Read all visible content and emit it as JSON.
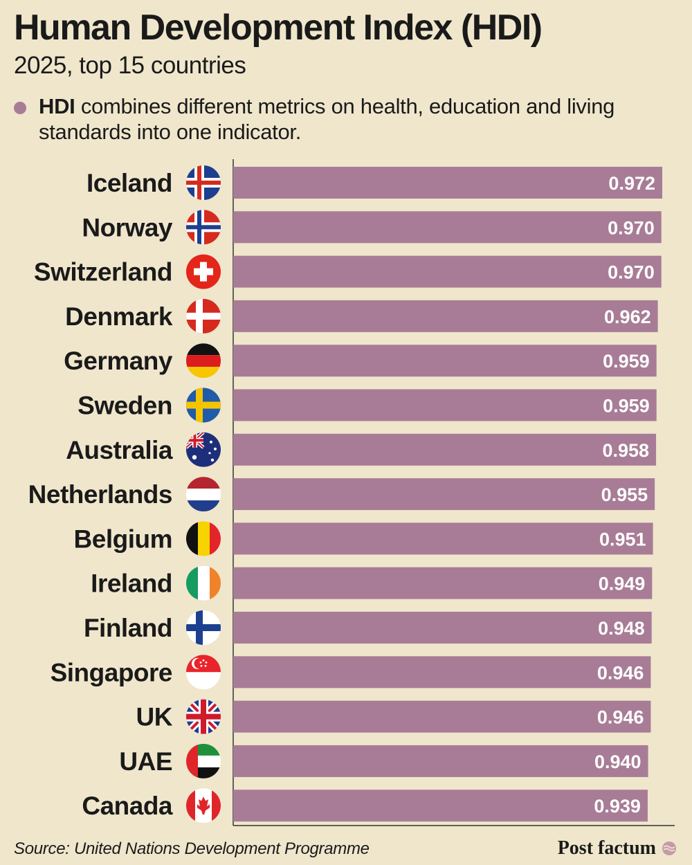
{
  "header": {
    "title": "Human Development Index (HDI)",
    "subtitle": "2025, top 15 countries"
  },
  "legend": {
    "key": "HDI",
    "text": " combines different metrics on health, education and living standards into one indicator."
  },
  "footer": {
    "source": "Source: United Nations Development Programme",
    "brand": "Post factum"
  },
  "colors": {
    "bar": "#a87c96",
    "background": "#efe6cc",
    "text": "#1a1a1a",
    "value_text": "#ffffff"
  },
  "chart_data": {
    "type": "bar",
    "orientation": "horizontal",
    "title": "Human Development Index (HDI)",
    "subtitle": "2025, top 15 countries",
    "categories": [
      "Iceland",
      "Norway",
      "Switzerland",
      "Denmark",
      "Germany",
      "Sweden",
      "Australia",
      "Netherlands",
      "Belgium",
      "Ireland",
      "Finland",
      "Singapore",
      "UK",
      "UAE",
      "Canada"
    ],
    "values": [
      0.972,
      0.97,
      0.97,
      0.962,
      0.959,
      0.959,
      0.958,
      0.955,
      0.951,
      0.949,
      0.948,
      0.946,
      0.946,
      0.94,
      0.939
    ],
    "labels": [
      "0.972",
      "0.970",
      "0.970",
      "0.962",
      "0.959",
      "0.959",
      "0.958",
      "0.955",
      "0.951",
      "0.949",
      "0.948",
      "0.946",
      "0.946",
      "0.940",
      "0.939"
    ],
    "flags": [
      "iceland-flag-icon",
      "norway-flag-icon",
      "switzerland-flag-icon",
      "denmark-flag-icon",
      "germany-flag-icon",
      "sweden-flag-icon",
      "australia-flag-icon",
      "netherlands-flag-icon",
      "belgium-flag-icon",
      "ireland-flag-icon",
      "finland-flag-icon",
      "singapore-flag-icon",
      "uk-flag-icon",
      "uae-flag-icon",
      "canada-flag-icon"
    ],
    "xlim": [
      0,
      0.972
    ],
    "xlabel": "",
    "ylabel": "",
    "grid": false
  }
}
